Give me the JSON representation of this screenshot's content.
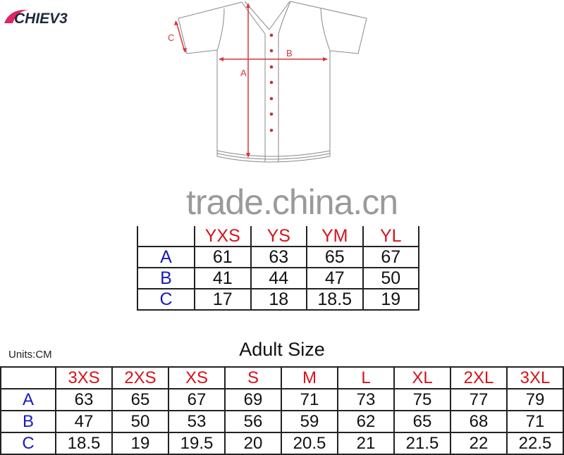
{
  "logo": {
    "text": "ACHIEVE",
    "colors": {
      "swoosh": "#e0245e",
      "text": "#1f2a3c"
    }
  },
  "diagram": {
    "labels": {
      "a": "A",
      "b": "B",
      "c": "C"
    },
    "accent": "#d9353b"
  },
  "watermark": "trade.china.cn",
  "youth_table": {
    "headers": [
      "YXS",
      "YS",
      "YM",
      "YL"
    ],
    "rows": [
      {
        "label": "A",
        "values": [
          "61",
          "63",
          "65",
          "67"
        ]
      },
      {
        "label": "B",
        "values": [
          "41",
          "44",
          "47",
          "50"
        ]
      },
      {
        "label": "C",
        "values": [
          "17",
          "18",
          "18.5",
          "19"
        ]
      }
    ]
  },
  "units": "Units:CM",
  "adult_title": "Adult Size",
  "adult_table": {
    "headers": [
      "3XS",
      "2XS",
      "XS",
      "S",
      "M",
      "L",
      "XL",
      "2XL",
      "3XL"
    ],
    "rows": [
      {
        "label": "A",
        "values": [
          "63",
          "65",
          "67",
          "69",
          "71",
          "73",
          "75",
          "77",
          "79"
        ]
      },
      {
        "label": "B",
        "values": [
          "47",
          "50",
          "53",
          "56",
          "59",
          "62",
          "65",
          "68",
          "71"
        ]
      },
      {
        "label": "C",
        "values": [
          "18.5",
          "19",
          "19.5",
          "20",
          "20.5",
          "21",
          "21.5",
          "22",
          "22.5"
        ]
      }
    ]
  },
  "colors": {
    "size_header": "#d4141c",
    "row_label": "#1a1ab8"
  }
}
